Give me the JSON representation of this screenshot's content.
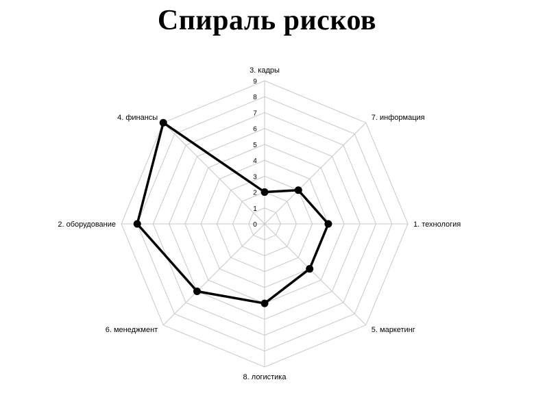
{
  "chart_data": {
    "type": "radar",
    "title": "Спираль рисков",
    "axes": [
      "3. кадры",
      "7. информация",
      "1. технология",
      "5. маркетинг",
      "8. логистика",
      "6. менеджмент",
      "2. оборудование",
      "4. финансы"
    ],
    "values": [
      2,
      3,
      4,
      4,
      5,
      6,
      8,
      9
    ],
    "ticks": [
      "0",
      "1",
      "2",
      "3",
      "4",
      "5",
      "6",
      "7",
      "8",
      "9"
    ],
    "range": [
      0,
      9
    ],
    "grid": true,
    "series_color": "#000000",
    "grid_color": "#c8c8c8"
  }
}
